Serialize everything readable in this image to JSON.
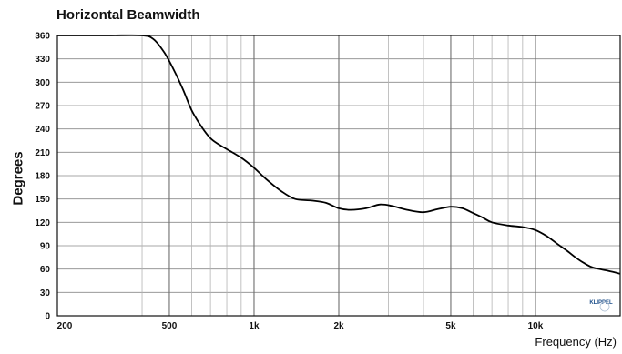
{
  "chart_data": {
    "type": "line",
    "title": "Horizontal Beamwidth",
    "xlabel": "Frequency (Hz)",
    "ylabel": "Degrees",
    "x_scale": "log",
    "xlim": [
      200,
      20000
    ],
    "ylim": [
      0,
      360
    ],
    "x_tick_values": [
      200,
      500,
      1000,
      2000,
      5000,
      10000
    ],
    "x_tick_labels": [
      "200",
      "500",
      "1k",
      "2k",
      "5k",
      "10k"
    ],
    "x_minor_grid": [
      300,
      400,
      600,
      700,
      800,
      900,
      3000,
      4000,
      6000,
      7000,
      8000,
      9000
    ],
    "y_ticks": [
      0,
      30,
      60,
      90,
      120,
      150,
      180,
      210,
      240,
      270,
      300,
      330,
      360
    ],
    "grid": true,
    "series": [
      {
        "color": "#000000",
        "points": [
          [
            200,
            360
          ],
          [
            300,
            360
          ],
          [
            400,
            360
          ],
          [
            440,
            355
          ],
          [
            480,
            338
          ],
          [
            520,
            315
          ],
          [
            560,
            290
          ],
          [
            600,
            264
          ],
          [
            650,
            243
          ],
          [
            700,
            228
          ],
          [
            750,
            220
          ],
          [
            800,
            214
          ],
          [
            900,
            203
          ],
          [
            1000,
            190
          ],
          [
            1100,
            176
          ],
          [
            1250,
            160
          ],
          [
            1400,
            150
          ],
          [
            1600,
            148
          ],
          [
            1800,
            145
          ],
          [
            2000,
            138
          ],
          [
            2200,
            136
          ],
          [
            2500,
            138
          ],
          [
            2800,
            143
          ],
          [
            3100,
            141
          ],
          [
            3500,
            136
          ],
          [
            4000,
            133
          ],
          [
            4500,
            137
          ],
          [
            5000,
            140
          ],
          [
            5500,
            138
          ],
          [
            6000,
            132
          ],
          [
            6500,
            126
          ],
          [
            7000,
            120
          ],
          [
            8000,
            116
          ],
          [
            9000,
            114
          ],
          [
            10000,
            110
          ],
          [
            11000,
            102
          ],
          [
            12000,
            92
          ],
          [
            13000,
            83
          ],
          [
            14000,
            74
          ],
          [
            15000,
            67
          ],
          [
            16000,
            62
          ],
          [
            18000,
            58
          ],
          [
            20000,
            54
          ]
        ]
      }
    ]
  },
  "logo": {
    "text": "KLIPPEL"
  }
}
